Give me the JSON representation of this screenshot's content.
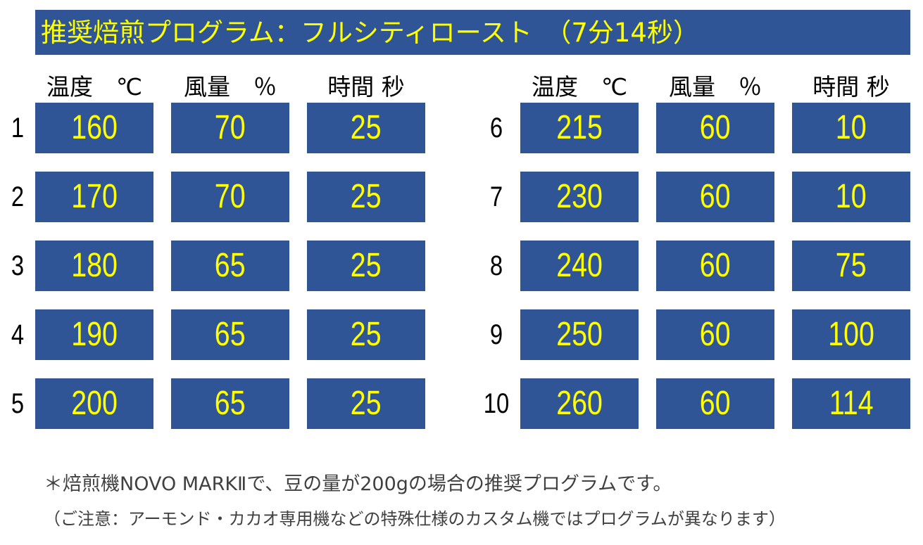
{
  "title": "推奨焙煎プログラム：フルシティロースト　（7分14秒）",
  "headers": {
    "temperature": "温度　℃",
    "airflow": "風量　％",
    "time": "時間 秒"
  },
  "rows": [
    {
      "step": "1",
      "temperature": "160",
      "airflow": "70",
      "time": "25"
    },
    {
      "step": "2",
      "temperature": "170",
      "airflow": "70",
      "time": "25"
    },
    {
      "step": "3",
      "temperature": "180",
      "airflow": "65",
      "time": "25"
    },
    {
      "step": "4",
      "temperature": "190",
      "airflow": "65",
      "time": "25"
    },
    {
      "step": "5",
      "temperature": "200",
      "airflow": "65",
      "time": "25"
    },
    {
      "step": "6",
      "temperature": "215",
      "airflow": "60",
      "time": "10"
    },
    {
      "step": "7",
      "temperature": "230",
      "airflow": "60",
      "time": "10"
    },
    {
      "step": "8",
      "temperature": "240",
      "airflow": "60",
      "time": "75"
    },
    {
      "step": "9",
      "temperature": "250",
      "airflow": "60",
      "time": "100"
    },
    {
      "step": "10",
      "temperature": "260",
      "airflow": "60",
      "time": "114"
    }
  ],
  "notes": {
    "line1": "＊焙煎機NOVO MARKⅡで、豆の量が200gの場合の推奨プログラムです。",
    "line2": "（ご注意：アーモンド・カカオ専用機などの特殊仕様のカスタム機ではプログラムが異なります）"
  },
  "colors": {
    "cell_background": "#2F5597",
    "value_text": "#FFFF00",
    "note_text": "#404040"
  }
}
